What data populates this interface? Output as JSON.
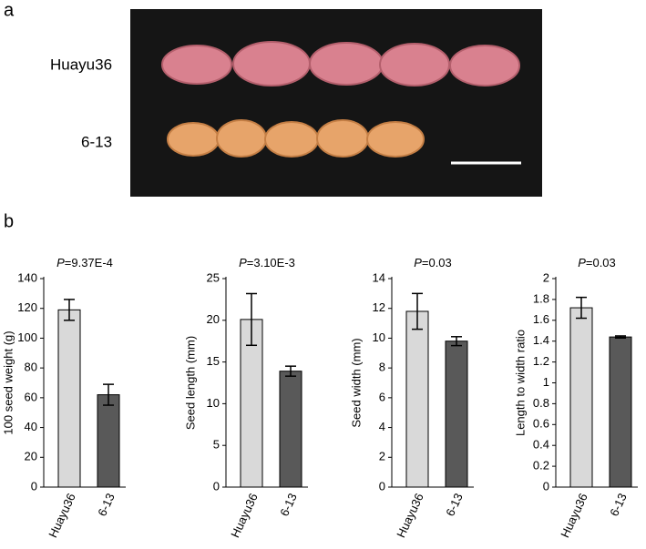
{
  "panel_a": {
    "label": "a",
    "rows": [
      "Huayu36",
      "6-13"
    ]
  },
  "panel_b": {
    "label": "b"
  },
  "chart_data": [
    {
      "type": "bar",
      "title": "P=9.37E-4",
      "y_label": "100 seed weight (g)",
      "categories": [
        "Huayu36",
        "6-13"
      ],
      "values": [
        119,
        62
      ],
      "errors": [
        7,
        7
      ],
      "colors": [
        "#d9d9d9",
        "#595959"
      ],
      "ylim": [
        0,
        140
      ],
      "yticks": [
        0,
        20,
        40,
        60,
        80,
        100,
        120,
        140
      ]
    },
    {
      "type": "bar",
      "title": "P=3.10E-3",
      "y_label": "Seed length (mm)",
      "categories": [
        "Huayu36",
        "6-13"
      ],
      "values": [
        20.1,
        13.9
      ],
      "errors": [
        3.1,
        0.6
      ],
      "colors": [
        "#d9d9d9",
        "#595959"
      ],
      "ylim": [
        0,
        25
      ],
      "yticks": [
        0,
        5,
        10,
        15,
        20,
        25
      ]
    },
    {
      "type": "bar",
      "title": "P=0.03",
      "y_label": "Seed width (mm)",
      "categories": [
        "Huayu36",
        "6-13"
      ],
      "values": [
        11.8,
        9.8
      ],
      "errors": [
        1.2,
        0.3
      ],
      "colors": [
        "#d9d9d9",
        "#595959"
      ],
      "ylim": [
        0,
        14
      ],
      "yticks": [
        0,
        2,
        4,
        6,
        8,
        10,
        12,
        14
      ]
    },
    {
      "type": "bar",
      "title": "P=0.03",
      "y_label": "Length to width ratio",
      "categories": [
        "Huayu36",
        "6-13"
      ],
      "values": [
        1.72,
        1.44
      ],
      "errors": [
        0.1,
        0.01
      ],
      "colors": [
        "#d9d9d9",
        "#595959"
      ],
      "ylim": [
        0,
        2
      ],
      "yticks": [
        0,
        0.2,
        0.4,
        0.6,
        0.8,
        1,
        1.2,
        1.4,
        1.6,
        1.8,
        2
      ]
    }
  ]
}
